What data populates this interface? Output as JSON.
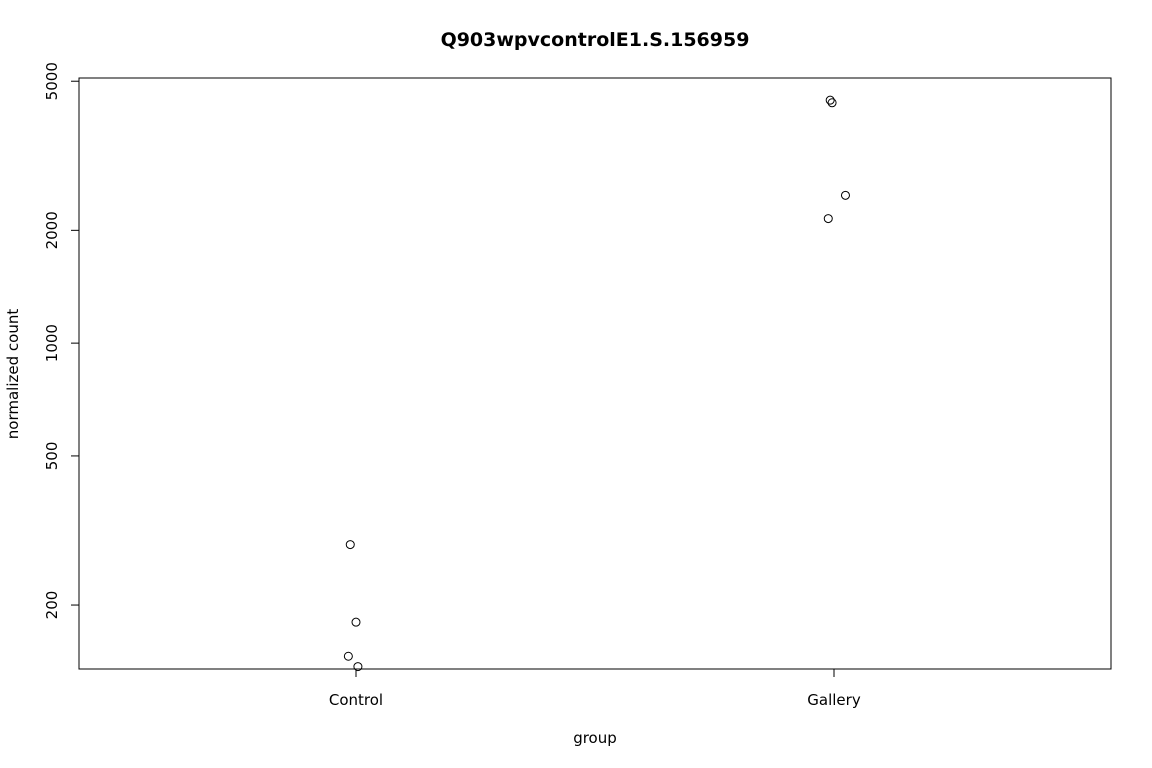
{
  "chart_data": {
    "type": "scatter",
    "title": "Q903wpvcontrolE1.S.156959",
    "xlabel": "group",
    "ylabel": "normalized count",
    "y_scale": "log",
    "ylim": [
      135,
      5100
    ],
    "categories": [
      "Control",
      "Gallery"
    ],
    "y_ticks": [
      200,
      500,
      1000,
      2000,
      5000
    ],
    "y_tick_labels": [
      "200",
      "500",
      "1000",
      "2000",
      "5000"
    ],
    "points": [
      {
        "group": "Control",
        "jitter": -0.03,
        "y": 290
      },
      {
        "group": "Control",
        "jitter": 0.0,
        "y": 180
      },
      {
        "group": "Control",
        "jitter": -0.04,
        "y": 146
      },
      {
        "group": "Control",
        "jitter": 0.01,
        "y": 137
      },
      {
        "group": "Gallery",
        "jitter": -0.02,
        "y": 4450
      },
      {
        "group": "Gallery",
        "jitter": -0.01,
        "y": 4380
      },
      {
        "group": "Gallery",
        "jitter": 0.06,
        "y": 2480
      },
      {
        "group": "Gallery",
        "jitter": -0.03,
        "y": 2150
      }
    ],
    "grid": false,
    "legend": "none"
  }
}
